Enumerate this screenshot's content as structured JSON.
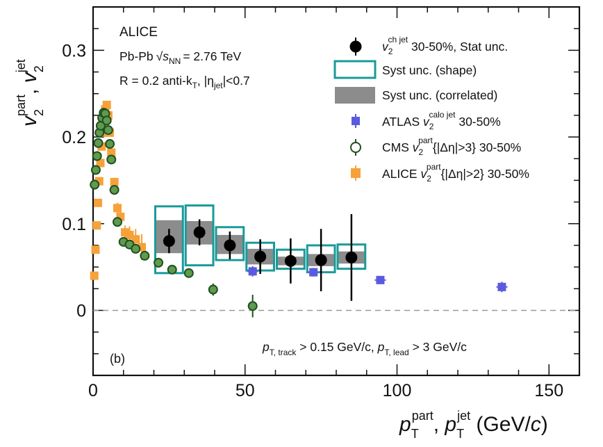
{
  "chart_data": {
    "type": "scatter",
    "panel_label": "(b)",
    "xlabel": "p_T^part, p_T^jet (GeV/c)",
    "ylabel": "v_2^part, v_2^jet",
    "xlim": [
      0,
      160
    ],
    "ylim": [
      -0.075,
      0.35
    ],
    "x_ticks": [
      "0",
      "50",
      "100",
      "150"
    ],
    "x_tick_values": [
      0,
      50,
      100,
      150
    ],
    "y_ticks": [
      "0",
      "0.1",
      "0.2",
      "0.3"
    ],
    "y_tick_values": [
      0,
      0.1,
      0.2,
      0.3
    ],
    "zero_line": true,
    "header": {
      "experiment": "ALICE",
      "system_prefix": "Pb-Pb",
      "sqrt_s": "s",
      "sqrt_s_sub": "NN",
      "energy": "= 2.76 TeV",
      "jet_def": "R = 0.2 anti-k",
      "jet_def_sub": "T",
      "eta_cut": ", |η",
      "eta_cut_sub": "jet",
      "eta_cut_end": "|<0.7"
    },
    "cuts": {
      "track": "p",
      "track_sub": "T, track",
      "track_val": " > 0.15 GeV/c, ",
      "lead": "p",
      "lead_sub": "T, lead",
      "lead_val": " > 3 GeV/c"
    },
    "legend": {
      "alice_jet": {
        "main": "v",
        "sub": "2",
        "sup": "ch jet",
        "rest": " 30-50%, Stat unc."
      },
      "syst_shape": "Syst unc. (shape)",
      "syst_corr": "Syst unc. (correlated)",
      "atlas": {
        "prefix": "ATLAS ",
        "main": "v",
        "sub": "2",
        "sup": "calo jet",
        "rest": " 30-50%"
      },
      "cms": {
        "prefix": "CMS ",
        "main": "v",
        "sub": "2",
        "sup": "part",
        "rest": "{|Δη|>3} 30-50%"
      },
      "alice_part": {
        "prefix": "ALICE ",
        "main": "v",
        "sub": "2",
        "sup": "part",
        "rest": "{|Δη|>2} 30-50%"
      }
    },
    "colors": {
      "alice_jet": "#000000",
      "syst_shape": "#1a9a9a",
      "syst_corr": "#8c8c8c",
      "atlas": "#5a5ae0",
      "cms_edge": "#1f4f1f",
      "cms_fill": "#5f9a4f",
      "alice_part": "#f7a13a",
      "zero_line": "#9a9a9a"
    },
    "series": [
      {
        "name": "ALICE v2 ch jet 30-50%",
        "x": [
          25,
          35,
          45,
          55,
          65,
          75,
          85
        ],
        "y": [
          0.08,
          0.09,
          0.075,
          0.062,
          0.057,
          0.058,
          0.061
        ],
        "yerr": [
          0.014,
          0.015,
          0.016,
          0.02,
          0.026,
          0.036,
          0.05
        ],
        "syst_shape_lo": [
          0.043,
          0.052,
          0.058,
          0.046,
          0.048,
          0.044,
          0.048
        ],
        "syst_shape_hi": [
          0.12,
          0.121,
          0.096,
          0.078,
          0.07,
          0.075,
          0.076
        ],
        "syst_corr_lo": [
          0.066,
          0.076,
          0.065,
          0.053,
          0.052,
          0.051,
          0.054
        ],
        "syst_corr_hi": [
          0.104,
          0.103,
          0.087,
          0.071,
          0.062,
          0.065,
          0.068
        ]
      },
      {
        "name": "ATLAS v2 calo jet 30-50%",
        "x": [
          52.5,
          72.5,
          94.5,
          134.5
        ],
        "y": [
          0.045,
          0.044,
          0.035,
          0.027
        ],
        "yerr": [
          0.006,
          0.005,
          0.004,
          0.006
        ]
      },
      {
        "name": "CMS v2 part {|Δη|>3} 30-50%",
        "x": [
          0.5,
          0.9,
          1.3,
          1.7,
          2.1,
          2.5,
          3.0,
          3.5,
          4.0,
          4.5,
          5.0,
          5.5,
          6.0,
          7.0,
          8.0,
          10.0,
          12.0,
          14.0,
          17.0,
          21.5,
          26.0,
          31.5,
          39.5,
          52.5
        ],
        "y": [
          0.145,
          0.162,
          0.178,
          0.193,
          0.205,
          0.213,
          0.222,
          0.228,
          0.227,
          0.219,
          0.208,
          0.192,
          0.174,
          0.139,
          0.102,
          0.079,
          0.076,
          0.071,
          0.063,
          0.055,
          0.047,
          0.043,
          0.024,
          0.005
        ],
        "yerr": [
          0.003,
          0.003,
          0.003,
          0.003,
          0.003,
          0.003,
          0.003,
          0.003,
          0.003,
          0.003,
          0.003,
          0.003,
          0.003,
          0.003,
          0.003,
          0.003,
          0.003,
          0.003,
          0.004,
          0.004,
          0.005,
          0.005,
          0.007,
          0.013
        ]
      },
      {
        "name": "ALICE v2 part {|Δη|>2} 30-50%",
        "x": [
          0.4,
          0.8,
          1.2,
          1.6,
          2.0,
          2.4,
          2.8,
          3.2,
          3.6,
          4.0,
          4.5,
          5.0,
          5.5,
          6.0,
          7.0,
          8.0,
          9.0,
          10.5,
          12.0,
          14.0,
          16.0
        ],
        "y": [
          0.04,
          0.07,
          0.098,
          0.124,
          0.149,
          0.17,
          0.189,
          0.205,
          0.221,
          0.232,
          0.237,
          0.225,
          0.205,
          0.182,
          0.148,
          0.118,
          0.108,
          0.09,
          0.087,
          0.082,
          0.073
        ],
        "yerr": [
          0.003,
          0.003,
          0.003,
          0.003,
          0.003,
          0.003,
          0.003,
          0.003,
          0.003,
          0.003,
          0.004,
          0.004,
          0.004,
          0.004,
          0.005,
          0.006,
          0.007,
          0.008,
          0.01,
          0.012,
          0.015
        ]
      }
    ]
  }
}
